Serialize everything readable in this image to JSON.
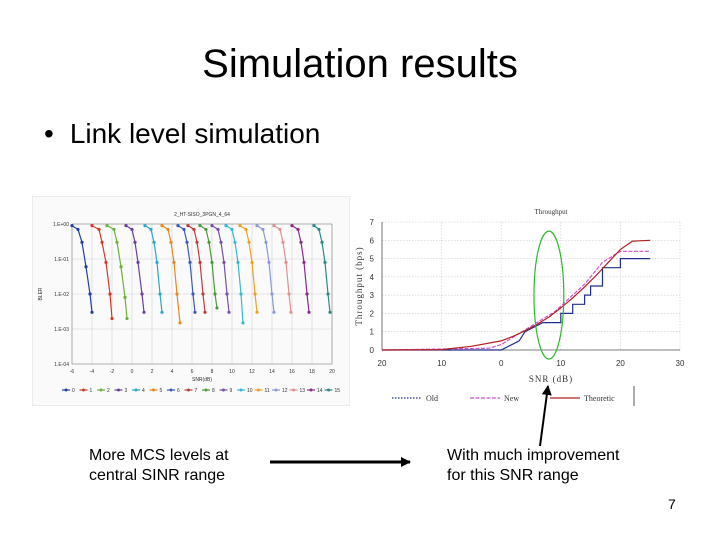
{
  "slide": {
    "title": "Simulation results",
    "bullet": "Link level simulation",
    "caption_left": [
      "More MCS levels at",
      "central SINR range"
    ],
    "caption_right": [
      "With much improvement",
      "for this SNR range"
    ],
    "page_number": "7"
  },
  "chart_data": [
    {
      "type": "line",
      "title": "2_HT-SISO_3PGN_4_64",
      "xlabel": "SNR(dB)",
      "ylabel": "BLER",
      "x_ticks": [
        "-6",
        "-4",
        "-2",
        "0",
        "2",
        "4",
        "6",
        "8",
        "10",
        "12",
        "14",
        "16",
        "18",
        "20"
      ],
      "y_ticks": [
        "1.E+00",
        "1.E-01",
        "1.E-02",
        "1.E-03",
        "1.E-04"
      ],
      "xlim": [
        -6,
        20
      ],
      "y_log": true,
      "ylim": [
        0.0001,
        1
      ],
      "legend": [
        "0",
        "1",
        "2",
        "3",
        "4",
        "5",
        "6",
        "7",
        "8",
        "9",
        "10",
        "11",
        "12",
        "13",
        "14",
        "15"
      ],
      "legend_position": "bottom",
      "curves": [
        {
          "color": "#1f3fa6",
          "x": [
            -6,
            -5.4,
            -5,
            -4.6,
            -4.2,
            -4
          ],
          "y": [
            0.9,
            0.7,
            0.3,
            0.06,
            0.01,
            0.003
          ]
        },
        {
          "color": "#d23a2a",
          "x": [
            -4,
            -3.3,
            -3,
            -2.6,
            -2.2,
            -2
          ],
          "y": [
            0.9,
            0.7,
            0.3,
            0.08,
            0.01,
            0.002
          ]
        },
        {
          "color": "#6bb23a",
          "x": [
            -2.5,
            -1.8,
            -1.5,
            -1.1,
            -0.7,
            -0.5
          ],
          "y": [
            0.9,
            0.7,
            0.3,
            0.06,
            0.008,
            0.002
          ]
        },
        {
          "color": "#6a3fa0",
          "x": [
            -0.6,
            0,
            0.3,
            0.6,
            1,
            1.2
          ],
          "y": [
            0.9,
            0.7,
            0.3,
            0.08,
            0.01,
            0.003
          ]
        },
        {
          "color": "#2aa7c9",
          "x": [
            1.3,
            1.9,
            2.2,
            2.5,
            2.8,
            3
          ],
          "y": [
            0.9,
            0.7,
            0.3,
            0.08,
            0.01,
            0.003
          ]
        },
        {
          "color": "#e8871e",
          "x": [
            3,
            3.6,
            3.9,
            4.2,
            4.5,
            4.8
          ],
          "y": [
            0.9,
            0.7,
            0.3,
            0.08,
            0.01,
            0.0015
          ]
        },
        {
          "color": "#3a5ab8",
          "x": [
            4.6,
            5.2,
            5.5,
            5.8,
            6.1,
            6.3
          ],
          "y": [
            0.9,
            0.7,
            0.3,
            0.08,
            0.01,
            0.003
          ]
        },
        {
          "color": "#c23b3b",
          "x": [
            5.6,
            6.2,
            6.5,
            6.8,
            7.1,
            7.3
          ],
          "y": [
            0.9,
            0.7,
            0.3,
            0.08,
            0.01,
            0.003
          ]
        },
        {
          "color": "#4a9a3a",
          "x": [
            6.8,
            7.4,
            7.7,
            8,
            8.3,
            8.5
          ],
          "y": [
            0.9,
            0.7,
            0.3,
            0.08,
            0.01,
            0.004
          ]
        },
        {
          "color": "#7a4fa8",
          "x": [
            8,
            8.6,
            8.9,
            9.2,
            9.5,
            9.7
          ],
          "y": [
            0.9,
            0.7,
            0.3,
            0.08,
            0.01,
            0.003
          ]
        },
        {
          "color": "#35b9cf",
          "x": [
            9.4,
            10,
            10.3,
            10.6,
            10.9,
            11.1
          ],
          "y": [
            0.9,
            0.7,
            0.3,
            0.08,
            0.01,
            0.0015
          ]
        },
        {
          "color": "#f0a020",
          "x": [
            10.8,
            11.4,
            11.7,
            12,
            12.3,
            12.5
          ],
          "y": [
            0.9,
            0.7,
            0.3,
            0.08,
            0.01,
            0.003
          ]
        },
        {
          "color": "#8a9ad8",
          "x": [
            12.5,
            13.1,
            13.4,
            13.7,
            14,
            14.2
          ],
          "y": [
            0.9,
            0.7,
            0.3,
            0.08,
            0.01,
            0.003
          ]
        },
        {
          "color": "#e09090",
          "x": [
            14.2,
            14.8,
            15.1,
            15.4,
            15.7,
            15.9
          ],
          "y": [
            0.9,
            0.7,
            0.3,
            0.08,
            0.01,
            0.003
          ]
        },
        {
          "color": "#8a2a8a",
          "x": [
            16,
            16.6,
            16.9,
            17.2,
            17.5,
            17.7
          ],
          "y": [
            0.9,
            0.7,
            0.3,
            0.08,
            0.01,
            0.003
          ]
        },
        {
          "color": "#2a8a8a",
          "x": [
            18.2,
            18.7,
            19,
            19.3,
            19.6,
            19.8
          ],
          "y": [
            0.9,
            0.7,
            0.3,
            0.08,
            0.01,
            0.003
          ]
        }
      ]
    },
    {
      "type": "line",
      "title": "Throughput",
      "xlabel": "SNR (dB)",
      "ylabel": "Throughput (bps)",
      "x_ticks": [
        "20",
        "10",
        "0",
        "10",
        "20",
        "30"
      ],
      "xlim": [
        -20,
        30
      ],
      "ylim": [
        0,
        7
      ],
      "y_ticks": [
        "0",
        "1",
        "2",
        "3",
        "4",
        "5",
        "6",
        "7"
      ],
      "legend_position": "bottom",
      "series": [
        {
          "name": "Old",
          "color": "#1f2f8a",
          "style": "step",
          "x": [
            -20,
            0,
            3,
            3,
            4,
            4,
            7,
            7,
            8,
            8,
            10,
            10,
            12,
            12,
            14,
            14,
            15,
            15,
            17,
            17,
            20,
            20,
            25
          ],
          "y": [
            0,
            0,
            0.5,
            0.5,
            1,
            1,
            1.5,
            1.5,
            1.5,
            1.5,
            1.5,
            2,
            2,
            2.5,
            2.5,
            3,
            3,
            3.5,
            3.5,
            4.5,
            4.5,
            5,
            5
          ]
        },
        {
          "name": "New",
          "color": "#d050d0",
          "style": "step",
          "x": [
            -20,
            -2,
            0,
            1,
            2,
            3,
            4,
            5,
            6,
            7,
            8,
            9,
            10,
            11,
            12,
            13,
            14,
            15,
            16,
            17,
            18,
            19,
            20,
            25
          ],
          "y": [
            0,
            0.1,
            0.3,
            0.5,
            0.7,
            0.9,
            1.1,
            1.3,
            1.5,
            1.7,
            1.9,
            2.1,
            2.4,
            2.7,
            3,
            3.3,
            3.6,
            4,
            4.4,
            4.8,
            5,
            5.2,
            5.4,
            5.4
          ]
        },
        {
          "name": "Theoretic",
          "color": "#b02020",
          "style": "smooth",
          "x": [
            -20,
            -10,
            -5,
            0,
            2,
            4,
            6,
            8,
            10,
            12,
            14,
            16,
            18,
            20,
            22,
            25
          ],
          "y": [
            0,
            0.02,
            0.2,
            0.5,
            0.75,
            1.05,
            1.4,
            1.8,
            2.3,
            2.85,
            3.45,
            4.1,
            4.8,
            5.5,
            5.95,
            6
          ]
        }
      ],
      "highlight_ellipse": {
        "cx_snr": 8,
        "cy_val": 3.0,
        "rx_snr": 2.5,
        "ry_val": 3.5,
        "color": "#2eb82e"
      }
    }
  ]
}
